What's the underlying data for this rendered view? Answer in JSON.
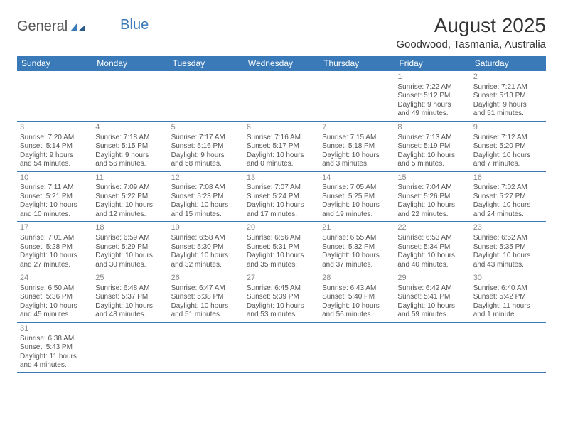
{
  "logo": {
    "part1": "General",
    "part2": "Blue"
  },
  "title": "August 2025",
  "location": "Goodwood, Tasmania, Australia",
  "colors": {
    "header_bg": "#3a7ab8",
    "header_text": "#ffffff",
    "border": "#3a7ab8",
    "text": "#555555",
    "daynum": "#888888",
    "title": "#333333"
  },
  "typography": {
    "title_fontsize": 28,
    "location_fontsize": 15,
    "header_fontsize": 12,
    "cell_fontsize": 10,
    "daynum_fontsize": 11
  },
  "weekdays": [
    "Sunday",
    "Monday",
    "Tuesday",
    "Wednesday",
    "Thursday",
    "Friday",
    "Saturday"
  ],
  "grid": [
    [
      null,
      null,
      null,
      null,
      null,
      {
        "d": "1",
        "sr": "Sunrise: 7:22 AM",
        "ss": "Sunset: 5:12 PM",
        "dl1": "Daylight: 9 hours",
        "dl2": "and 49 minutes."
      },
      {
        "d": "2",
        "sr": "Sunrise: 7:21 AM",
        "ss": "Sunset: 5:13 PM",
        "dl1": "Daylight: 9 hours",
        "dl2": "and 51 minutes."
      }
    ],
    [
      {
        "d": "3",
        "sr": "Sunrise: 7:20 AM",
        "ss": "Sunset: 5:14 PM",
        "dl1": "Daylight: 9 hours",
        "dl2": "and 54 minutes."
      },
      {
        "d": "4",
        "sr": "Sunrise: 7:18 AM",
        "ss": "Sunset: 5:15 PM",
        "dl1": "Daylight: 9 hours",
        "dl2": "and 56 minutes."
      },
      {
        "d": "5",
        "sr": "Sunrise: 7:17 AM",
        "ss": "Sunset: 5:16 PM",
        "dl1": "Daylight: 9 hours",
        "dl2": "and 58 minutes."
      },
      {
        "d": "6",
        "sr": "Sunrise: 7:16 AM",
        "ss": "Sunset: 5:17 PM",
        "dl1": "Daylight: 10 hours",
        "dl2": "and 0 minutes."
      },
      {
        "d": "7",
        "sr": "Sunrise: 7:15 AM",
        "ss": "Sunset: 5:18 PM",
        "dl1": "Daylight: 10 hours",
        "dl2": "and 3 minutes."
      },
      {
        "d": "8",
        "sr": "Sunrise: 7:13 AM",
        "ss": "Sunset: 5:19 PM",
        "dl1": "Daylight: 10 hours",
        "dl2": "and 5 minutes."
      },
      {
        "d": "9",
        "sr": "Sunrise: 7:12 AM",
        "ss": "Sunset: 5:20 PM",
        "dl1": "Daylight: 10 hours",
        "dl2": "and 7 minutes."
      }
    ],
    [
      {
        "d": "10",
        "sr": "Sunrise: 7:11 AM",
        "ss": "Sunset: 5:21 PM",
        "dl1": "Daylight: 10 hours",
        "dl2": "and 10 minutes."
      },
      {
        "d": "11",
        "sr": "Sunrise: 7:09 AM",
        "ss": "Sunset: 5:22 PM",
        "dl1": "Daylight: 10 hours",
        "dl2": "and 12 minutes."
      },
      {
        "d": "12",
        "sr": "Sunrise: 7:08 AM",
        "ss": "Sunset: 5:23 PM",
        "dl1": "Daylight: 10 hours",
        "dl2": "and 15 minutes."
      },
      {
        "d": "13",
        "sr": "Sunrise: 7:07 AM",
        "ss": "Sunset: 5:24 PM",
        "dl1": "Daylight: 10 hours",
        "dl2": "and 17 minutes."
      },
      {
        "d": "14",
        "sr": "Sunrise: 7:05 AM",
        "ss": "Sunset: 5:25 PM",
        "dl1": "Daylight: 10 hours",
        "dl2": "and 19 minutes."
      },
      {
        "d": "15",
        "sr": "Sunrise: 7:04 AM",
        "ss": "Sunset: 5:26 PM",
        "dl1": "Daylight: 10 hours",
        "dl2": "and 22 minutes."
      },
      {
        "d": "16",
        "sr": "Sunrise: 7:02 AM",
        "ss": "Sunset: 5:27 PM",
        "dl1": "Daylight: 10 hours",
        "dl2": "and 24 minutes."
      }
    ],
    [
      {
        "d": "17",
        "sr": "Sunrise: 7:01 AM",
        "ss": "Sunset: 5:28 PM",
        "dl1": "Daylight: 10 hours",
        "dl2": "and 27 minutes."
      },
      {
        "d": "18",
        "sr": "Sunrise: 6:59 AM",
        "ss": "Sunset: 5:29 PM",
        "dl1": "Daylight: 10 hours",
        "dl2": "and 30 minutes."
      },
      {
        "d": "19",
        "sr": "Sunrise: 6:58 AM",
        "ss": "Sunset: 5:30 PM",
        "dl1": "Daylight: 10 hours",
        "dl2": "and 32 minutes."
      },
      {
        "d": "20",
        "sr": "Sunrise: 6:56 AM",
        "ss": "Sunset: 5:31 PM",
        "dl1": "Daylight: 10 hours",
        "dl2": "and 35 minutes."
      },
      {
        "d": "21",
        "sr": "Sunrise: 6:55 AM",
        "ss": "Sunset: 5:32 PM",
        "dl1": "Daylight: 10 hours",
        "dl2": "and 37 minutes."
      },
      {
        "d": "22",
        "sr": "Sunrise: 6:53 AM",
        "ss": "Sunset: 5:34 PM",
        "dl1": "Daylight: 10 hours",
        "dl2": "and 40 minutes."
      },
      {
        "d": "23",
        "sr": "Sunrise: 6:52 AM",
        "ss": "Sunset: 5:35 PM",
        "dl1": "Daylight: 10 hours",
        "dl2": "and 43 minutes."
      }
    ],
    [
      {
        "d": "24",
        "sr": "Sunrise: 6:50 AM",
        "ss": "Sunset: 5:36 PM",
        "dl1": "Daylight: 10 hours",
        "dl2": "and 45 minutes."
      },
      {
        "d": "25",
        "sr": "Sunrise: 6:48 AM",
        "ss": "Sunset: 5:37 PM",
        "dl1": "Daylight: 10 hours",
        "dl2": "and 48 minutes."
      },
      {
        "d": "26",
        "sr": "Sunrise: 6:47 AM",
        "ss": "Sunset: 5:38 PM",
        "dl1": "Daylight: 10 hours",
        "dl2": "and 51 minutes."
      },
      {
        "d": "27",
        "sr": "Sunrise: 6:45 AM",
        "ss": "Sunset: 5:39 PM",
        "dl1": "Daylight: 10 hours",
        "dl2": "and 53 minutes."
      },
      {
        "d": "28",
        "sr": "Sunrise: 6:43 AM",
        "ss": "Sunset: 5:40 PM",
        "dl1": "Daylight: 10 hours",
        "dl2": "and 56 minutes."
      },
      {
        "d": "29",
        "sr": "Sunrise: 6:42 AM",
        "ss": "Sunset: 5:41 PM",
        "dl1": "Daylight: 10 hours",
        "dl2": "and 59 minutes."
      },
      {
        "d": "30",
        "sr": "Sunrise: 6:40 AM",
        "ss": "Sunset: 5:42 PM",
        "dl1": "Daylight: 11 hours",
        "dl2": "and 1 minute."
      }
    ],
    [
      {
        "d": "31",
        "sr": "Sunrise: 6:38 AM",
        "ss": "Sunset: 5:43 PM",
        "dl1": "Daylight: 11 hours",
        "dl2": "and 4 minutes."
      },
      null,
      null,
      null,
      null,
      null,
      null
    ]
  ]
}
